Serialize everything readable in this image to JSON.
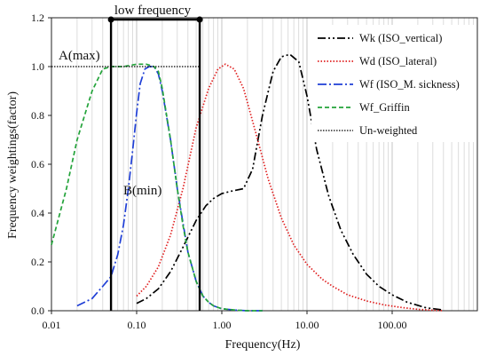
{
  "chart_data": {
    "type": "line",
    "xlabel": "Frequency(Hz)",
    "ylabel": "Frequency weightings(factor)",
    "xscale": "log",
    "xlim": [
      0.01,
      1000
    ],
    "ylim": [
      0,
      1.2
    ],
    "x_ticks": [
      0.01,
      0.1,
      1,
      10,
      100
    ],
    "x_tick_labels": [
      "0.01",
      "0.10",
      "1.00",
      "10.00",
      "100.00"
    ],
    "y_ticks": [
      0,
      0.2,
      0.4,
      0.6,
      0.8,
      1.0,
      1.2
    ],
    "y_tick_labels": [
      "0.0",
      "0.2",
      "0.4",
      "0.6",
      "0.8",
      "1.0",
      "1.2"
    ],
    "grid": {
      "x_minor_log": true,
      "y": false
    },
    "legend_position": "top-right",
    "series": [
      {
        "name": "Wk (ISO_vertical)",
        "color": "#000000",
        "dash": "dash-dot-dot",
        "x": [
          0.1,
          0.13,
          0.18,
          0.25,
          0.35,
          0.5,
          0.65,
          0.8,
          1.0,
          1.3,
          1.8,
          2.3,
          3.0,
          4.0,
          5.0,
          6.3,
          8.0,
          10.0,
          13.0,
          18.0,
          25.0,
          35.0,
          50.0,
          70.0,
          100.0,
          150.0,
          250.0,
          400.0
        ],
        "y": [
          0.03,
          0.05,
          0.09,
          0.16,
          0.26,
          0.37,
          0.43,
          0.46,
          0.48,
          0.49,
          0.5,
          0.58,
          0.8,
          0.98,
          1.04,
          1.05,
          1.02,
          0.88,
          0.66,
          0.47,
          0.33,
          0.23,
          0.15,
          0.1,
          0.065,
          0.035,
          0.012,
          0.003
        ]
      },
      {
        "name": "Wd (ISO_lateral)",
        "color": "#e02020",
        "dash": "dotted",
        "x": [
          0.1,
          0.13,
          0.18,
          0.25,
          0.35,
          0.5,
          0.7,
          0.9,
          1.1,
          1.4,
          1.8,
          2.5,
          3.5,
          5.0,
          7.0,
          10.0,
          15.0,
          20.0,
          30.0,
          50.0,
          80.0,
          130.0,
          200.0,
          300.0,
          400.0
        ],
        "y": [
          0.06,
          0.1,
          0.18,
          0.31,
          0.5,
          0.75,
          0.91,
          0.99,
          1.01,
          0.99,
          0.91,
          0.73,
          0.54,
          0.38,
          0.27,
          0.19,
          0.13,
          0.1,
          0.065,
          0.04,
          0.024,
          0.013,
          0.006,
          0.002,
          0.0
        ]
      },
      {
        "name": "Wf (ISO_M. sickness)",
        "color": "#1f3fd6",
        "dash": "dash-dot",
        "x": [
          0.02,
          0.03,
          0.04,
          0.05,
          0.06,
          0.07,
          0.08,
          0.09,
          0.1,
          0.11,
          0.125,
          0.14,
          0.16,
          0.18,
          0.2,
          0.25,
          0.3,
          0.35,
          0.4,
          0.5,
          0.6,
          0.7,
          0.8,
          1.0,
          1.5,
          2.0,
          3.0
        ],
        "y": [
          0.02,
          0.05,
          0.1,
          0.14,
          0.23,
          0.35,
          0.5,
          0.66,
          0.81,
          0.93,
          0.99,
          1.0,
          1.0,
          0.97,
          0.9,
          0.7,
          0.5,
          0.36,
          0.24,
          0.12,
          0.06,
          0.035,
          0.02,
          0.008,
          0.002,
          0.0,
          0.0
        ]
      },
      {
        "name": "Wf_Griffin",
        "color": "#23a33a",
        "dash": "dashed",
        "x": [
          0.01,
          0.015,
          0.02,
          0.03,
          0.04,
          0.05,
          0.07,
          0.1,
          0.13,
          0.16,
          0.18,
          0.2,
          0.25,
          0.3,
          0.35,
          0.4,
          0.5,
          0.6,
          0.7,
          0.8,
          1.0,
          1.5,
          2.0,
          3.0
        ],
        "y": [
          0.27,
          0.5,
          0.7,
          0.9,
          0.99,
          1.0,
          1.0,
          1.01,
          1.01,
          1.0,
          0.98,
          0.91,
          0.7,
          0.5,
          0.35,
          0.24,
          0.12,
          0.06,
          0.035,
          0.02,
          0.008,
          0.002,
          0.0,
          0.0
        ]
      },
      {
        "name": "Un-weighted",
        "color": "#000000",
        "dash": "fine-dotted",
        "x": [
          0.01,
          0.55
        ],
        "y": [
          1.0,
          1.0
        ]
      }
    ],
    "annotations": {
      "low_frequency_label": "low frequency",
      "low_frequency_bounds": [
        0.05,
        0.55
      ],
      "a_label": "A(max)",
      "b_label": "B(min)"
    }
  }
}
